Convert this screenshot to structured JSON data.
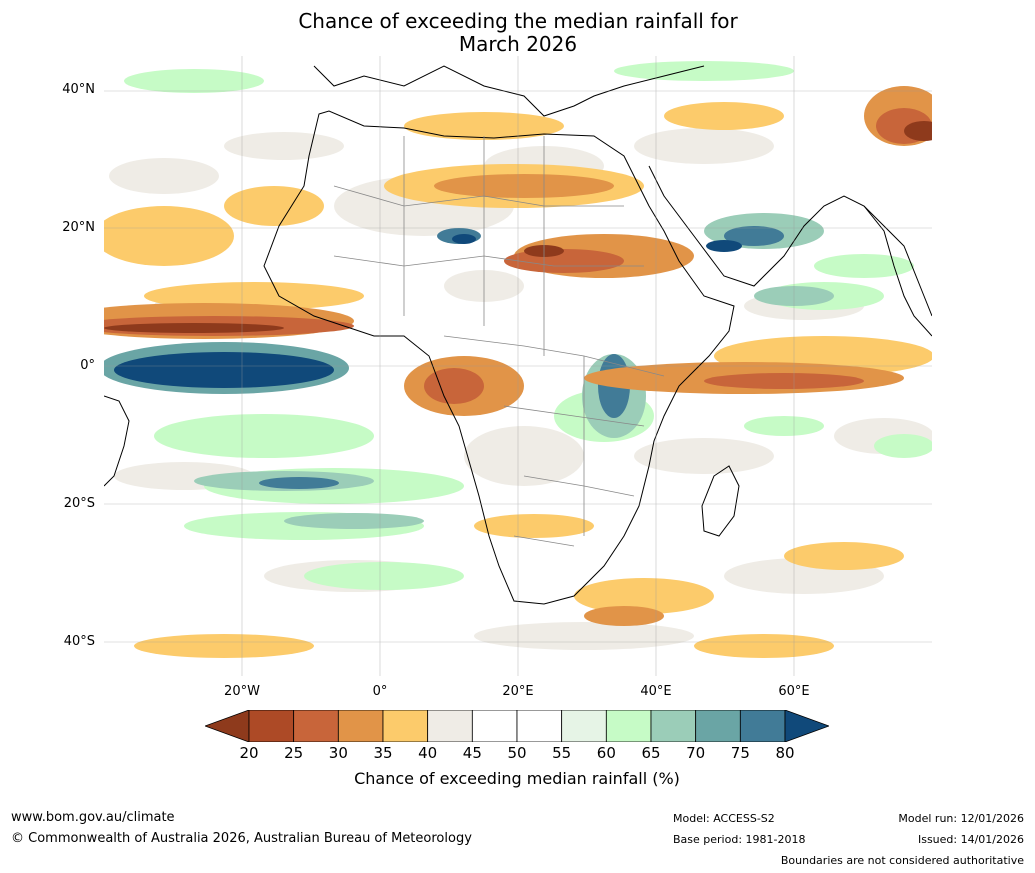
{
  "title_line1": "Chance of exceeding the median rainfall for",
  "title_line2": "March 2026",
  "latitude_labels": [
    "40°N",
    "20°N",
    "0°",
    "20°S",
    "40°S"
  ],
  "longitude_labels": [
    "20°W",
    "0°",
    "20°E",
    "40°E",
    "60°E"
  ],
  "extent": {
    "lon_min": -40,
    "lon_max": 80,
    "lat_min": -45,
    "lat_max": 45
  },
  "colorbar": {
    "ticks": [
      "20",
      "25",
      "30",
      "35",
      "40",
      "45",
      "50",
      "55",
      "60",
      "65",
      "70",
      "75",
      "80"
    ],
    "colors": [
      "#8e3a1c",
      "#ad4a26",
      "#c8653a",
      "#e19448",
      "#fccb6b",
      "#efece6",
      "#ffffff",
      "#ffffff",
      "#e6f4e6",
      "#c6fbc6",
      "#9bcdb8",
      "#6aa5a5",
      "#417b97",
      "#10497a"
    ],
    "title": "Chance of exceeding median rainfall (%)"
  },
  "footer": {
    "website": "www.bom.gov.au/climate",
    "copyright": "© Commonwealth of Australia 2026, Australian Bureau of Meteorology",
    "model": "Model: ACCESS-S2",
    "base_period": "Base period: 1981-2018",
    "model_run": "Model run: 12/01/2026",
    "issued": "Issued: 14/01/2026",
    "disclaimer": "Boundaries are not considered authoritative"
  }
}
